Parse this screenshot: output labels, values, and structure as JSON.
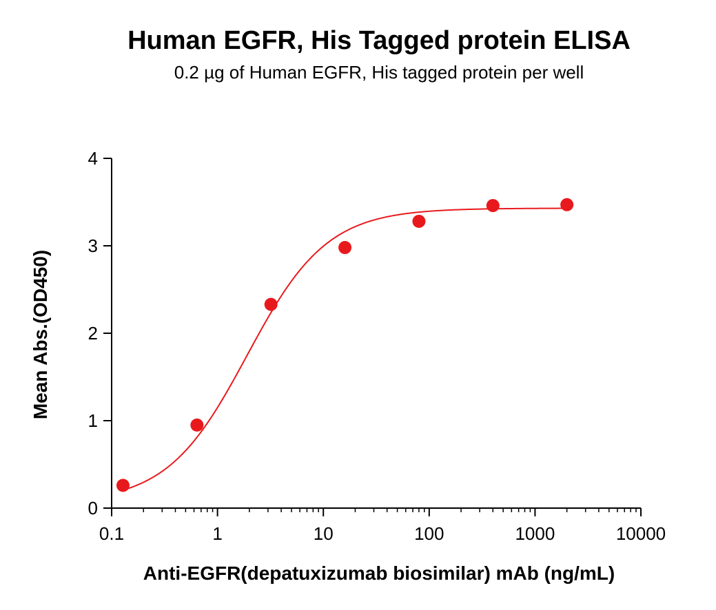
{
  "chart_data": {
    "type": "scatter",
    "title": "Human EGFR, His Tagged protein ELISA",
    "subtitle": "0.2 µg of Human EGFR, His tagged protein per well",
    "xlabel": "Anti-EGFR(depatuxizumab biosimilar) mAb (ng/mL)",
    "ylabel": "Mean Abs.(OD450)",
    "x_scale": "log",
    "xlim": [
      0.1,
      10000
    ],
    "ylim": [
      0,
      4
    ],
    "x_ticks": [
      "0.1",
      "1",
      "10",
      "100",
      "1000",
      "10000"
    ],
    "y_ticks": [
      "0",
      "1",
      "2",
      "3",
      "4"
    ],
    "grid": false,
    "series_color": "#e8191c",
    "series": [
      {
        "x": [
          0.128,
          0.64,
          3.2,
          16,
          80,
          400,
          2000
        ],
        "y": [
          0.26,
          0.95,
          2.33,
          2.98,
          3.28,
          3.46,
          3.47
        ],
        "fit": "four-parameter logistic"
      }
    ]
  }
}
